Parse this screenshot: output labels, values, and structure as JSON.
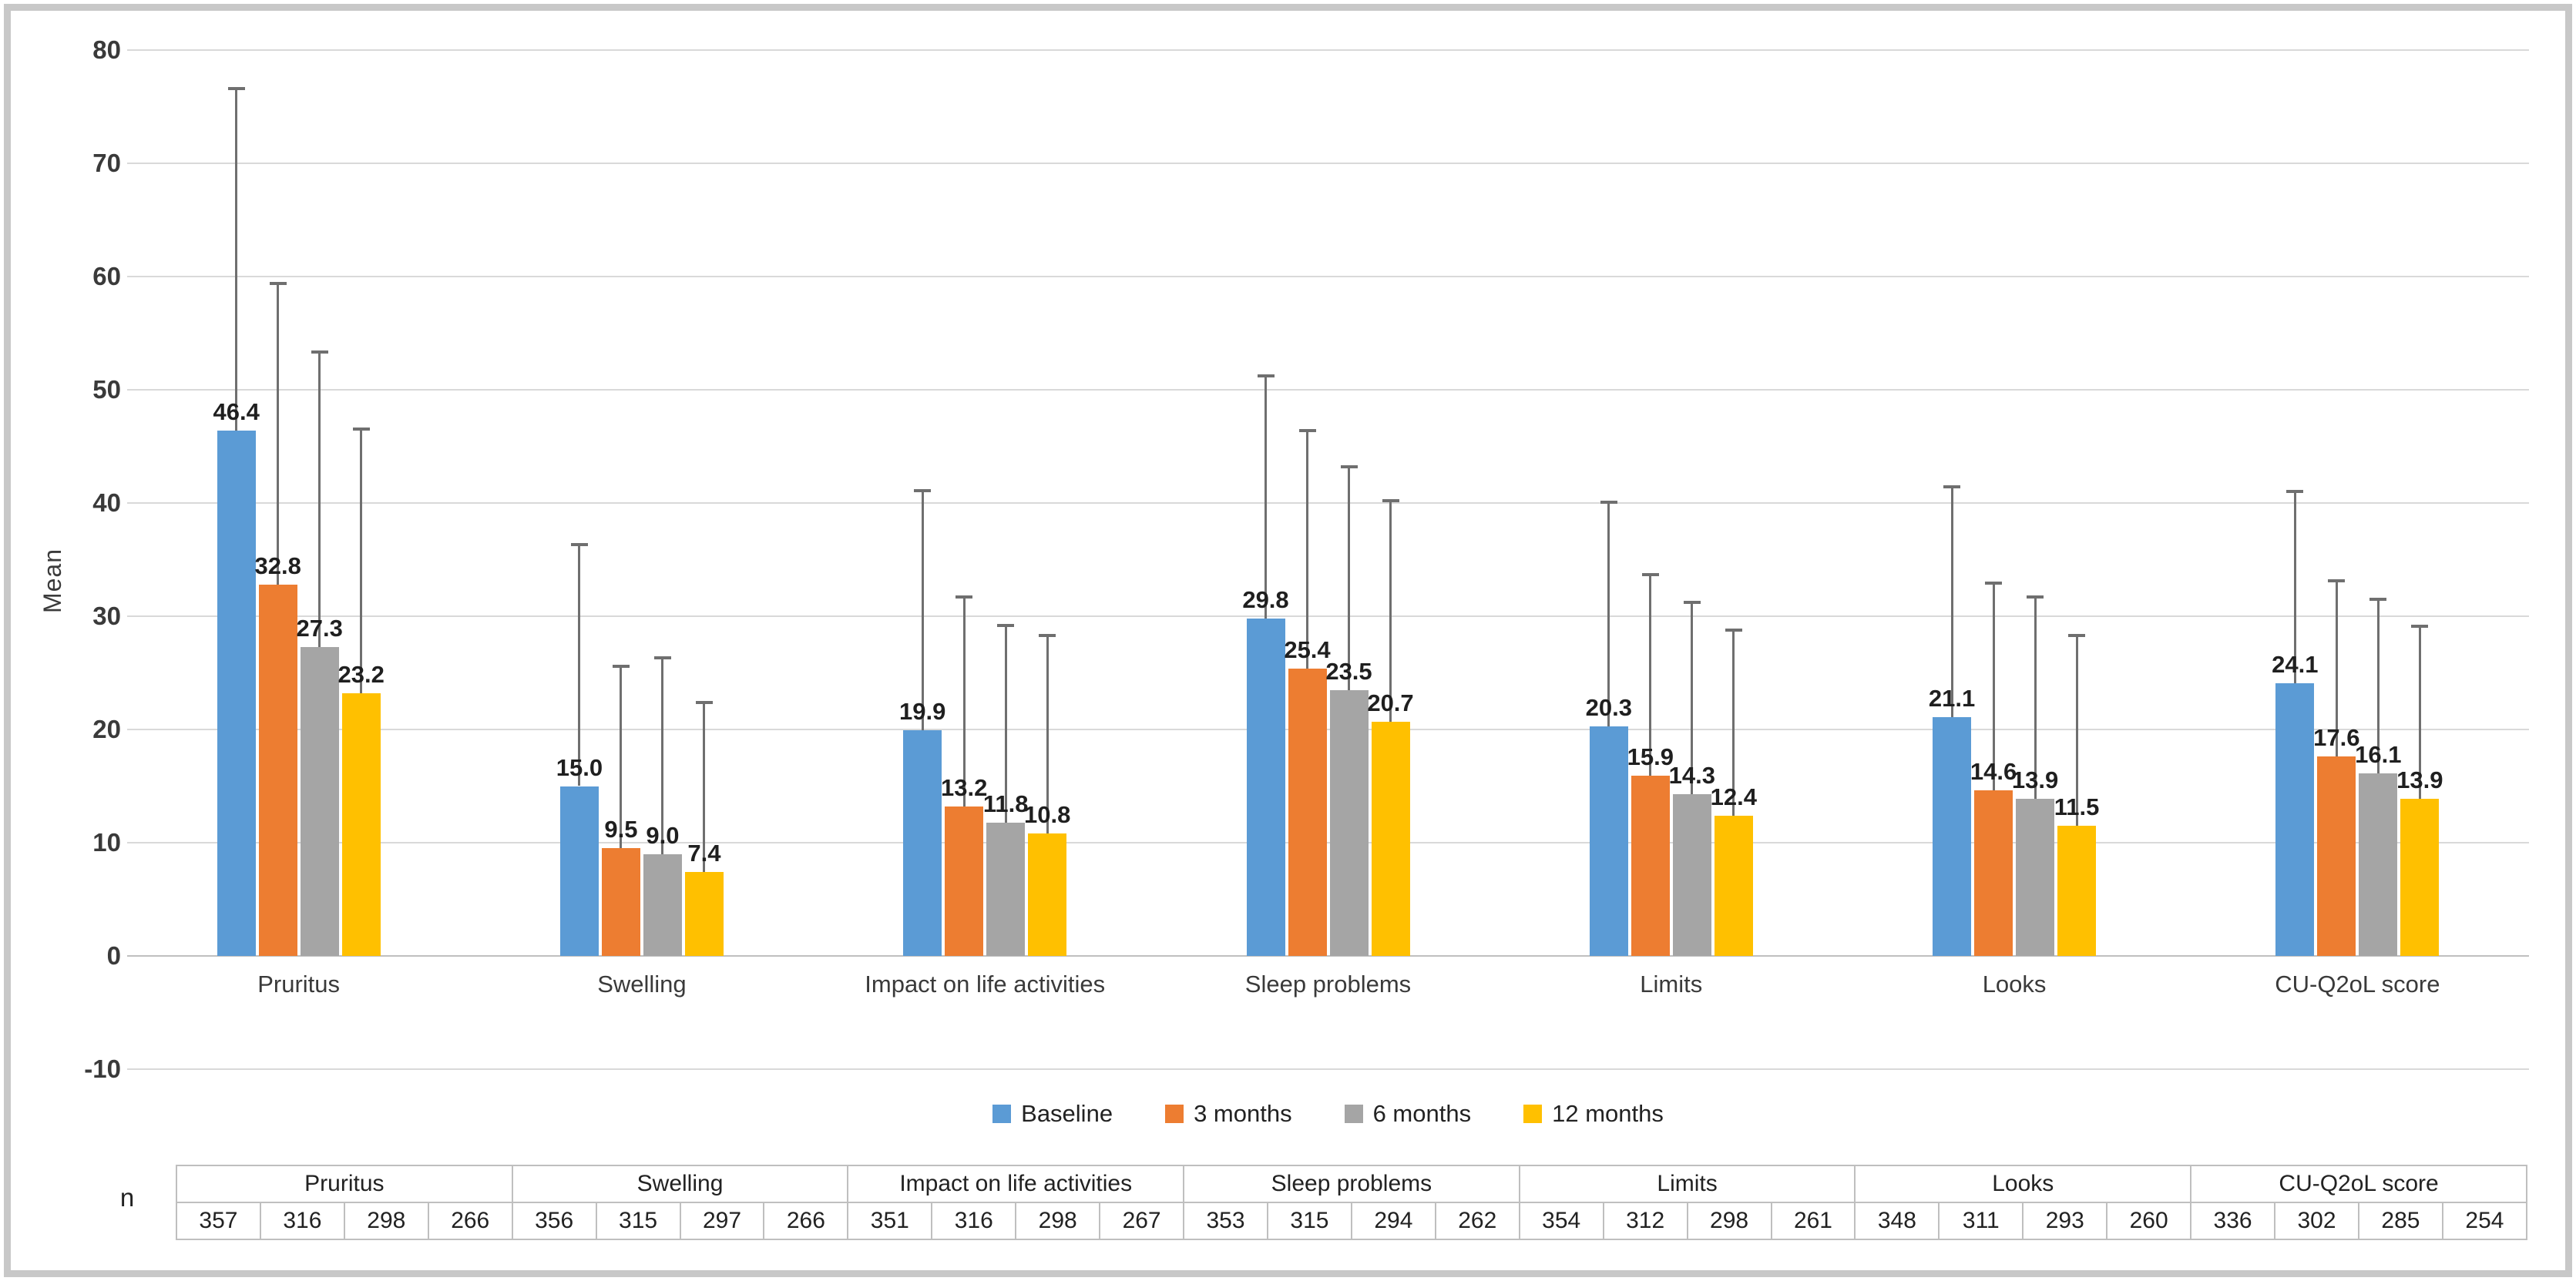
{
  "chart_data": {
    "type": "bar",
    "title": "",
    "xlabel": "",
    "ylabel": "Mean",
    "ylim": [
      -10,
      80
    ],
    "yticks": [
      80,
      70,
      60,
      50,
      40,
      30,
      20,
      10,
      0,
      -10
    ],
    "grid": true,
    "legend_position": "bottom",
    "categories": [
      "Pruritus",
      "Swelling",
      "Impact on life activities",
      "Sleep problems",
      "Limits",
      "Looks",
      "CU-Q2oL score"
    ],
    "series": [
      {
        "name": "Baseline",
        "color": "#5B9BD5",
        "values": [
          46.4,
          15.0,
          19.9,
          29.8,
          20.3,
          21.1,
          24.1
        ],
        "error_bar_tops": [
          76.6,
          36.3,
          41.1,
          51.2,
          40.1,
          41.4,
          41.0
        ]
      },
      {
        "name": "3 months",
        "color": "#ED7D31",
        "values": [
          32.8,
          9.5,
          13.2,
          25.4,
          15.9,
          14.6,
          17.6
        ],
        "error_bar_tops": [
          59.4,
          25.6,
          31.7,
          46.4,
          33.7,
          32.9,
          33.1
        ]
      },
      {
        "name": "6 months",
        "color": "#A5A5A5",
        "values": [
          27.3,
          9.0,
          11.8,
          23.5,
          14.3,
          13.9,
          16.1
        ],
        "error_bar_tops": [
          53.3,
          26.3,
          29.2,
          43.2,
          31.2,
          31.7,
          31.5
        ]
      },
      {
        "name": "12 months",
        "color": "#FFC000",
        "values": [
          23.2,
          7.4,
          10.8,
          20.7,
          12.4,
          11.5,
          13.9
        ],
        "error_bar_tops": [
          46.5,
          22.4,
          28.3,
          40.2,
          28.8,
          28.3,
          29.1
        ]
      }
    ],
    "error_bar_color": "#6f6f6f",
    "gridline_color": "#d9d9d9"
  },
  "n_table": {
    "row_label": "n",
    "groups": [
      {
        "label": "Pruritus",
        "values": [
          357,
          316,
          298,
          266
        ]
      },
      {
        "label": "Swelling",
        "values": [
          356,
          315,
          297,
          266
        ]
      },
      {
        "label": "Impact on life activities",
        "values": [
          351,
          316,
          298,
          267
        ]
      },
      {
        "label": "Sleep problems",
        "values": [
          353,
          315,
          294,
          262
        ]
      },
      {
        "label": "Limits",
        "values": [
          354,
          312,
          298,
          261
        ]
      },
      {
        "label": "Looks",
        "values": [
          348,
          311,
          293,
          260
        ]
      },
      {
        "label": "CU-Q2oL score",
        "values": [
          336,
          302,
          285,
          254
        ]
      }
    ]
  }
}
